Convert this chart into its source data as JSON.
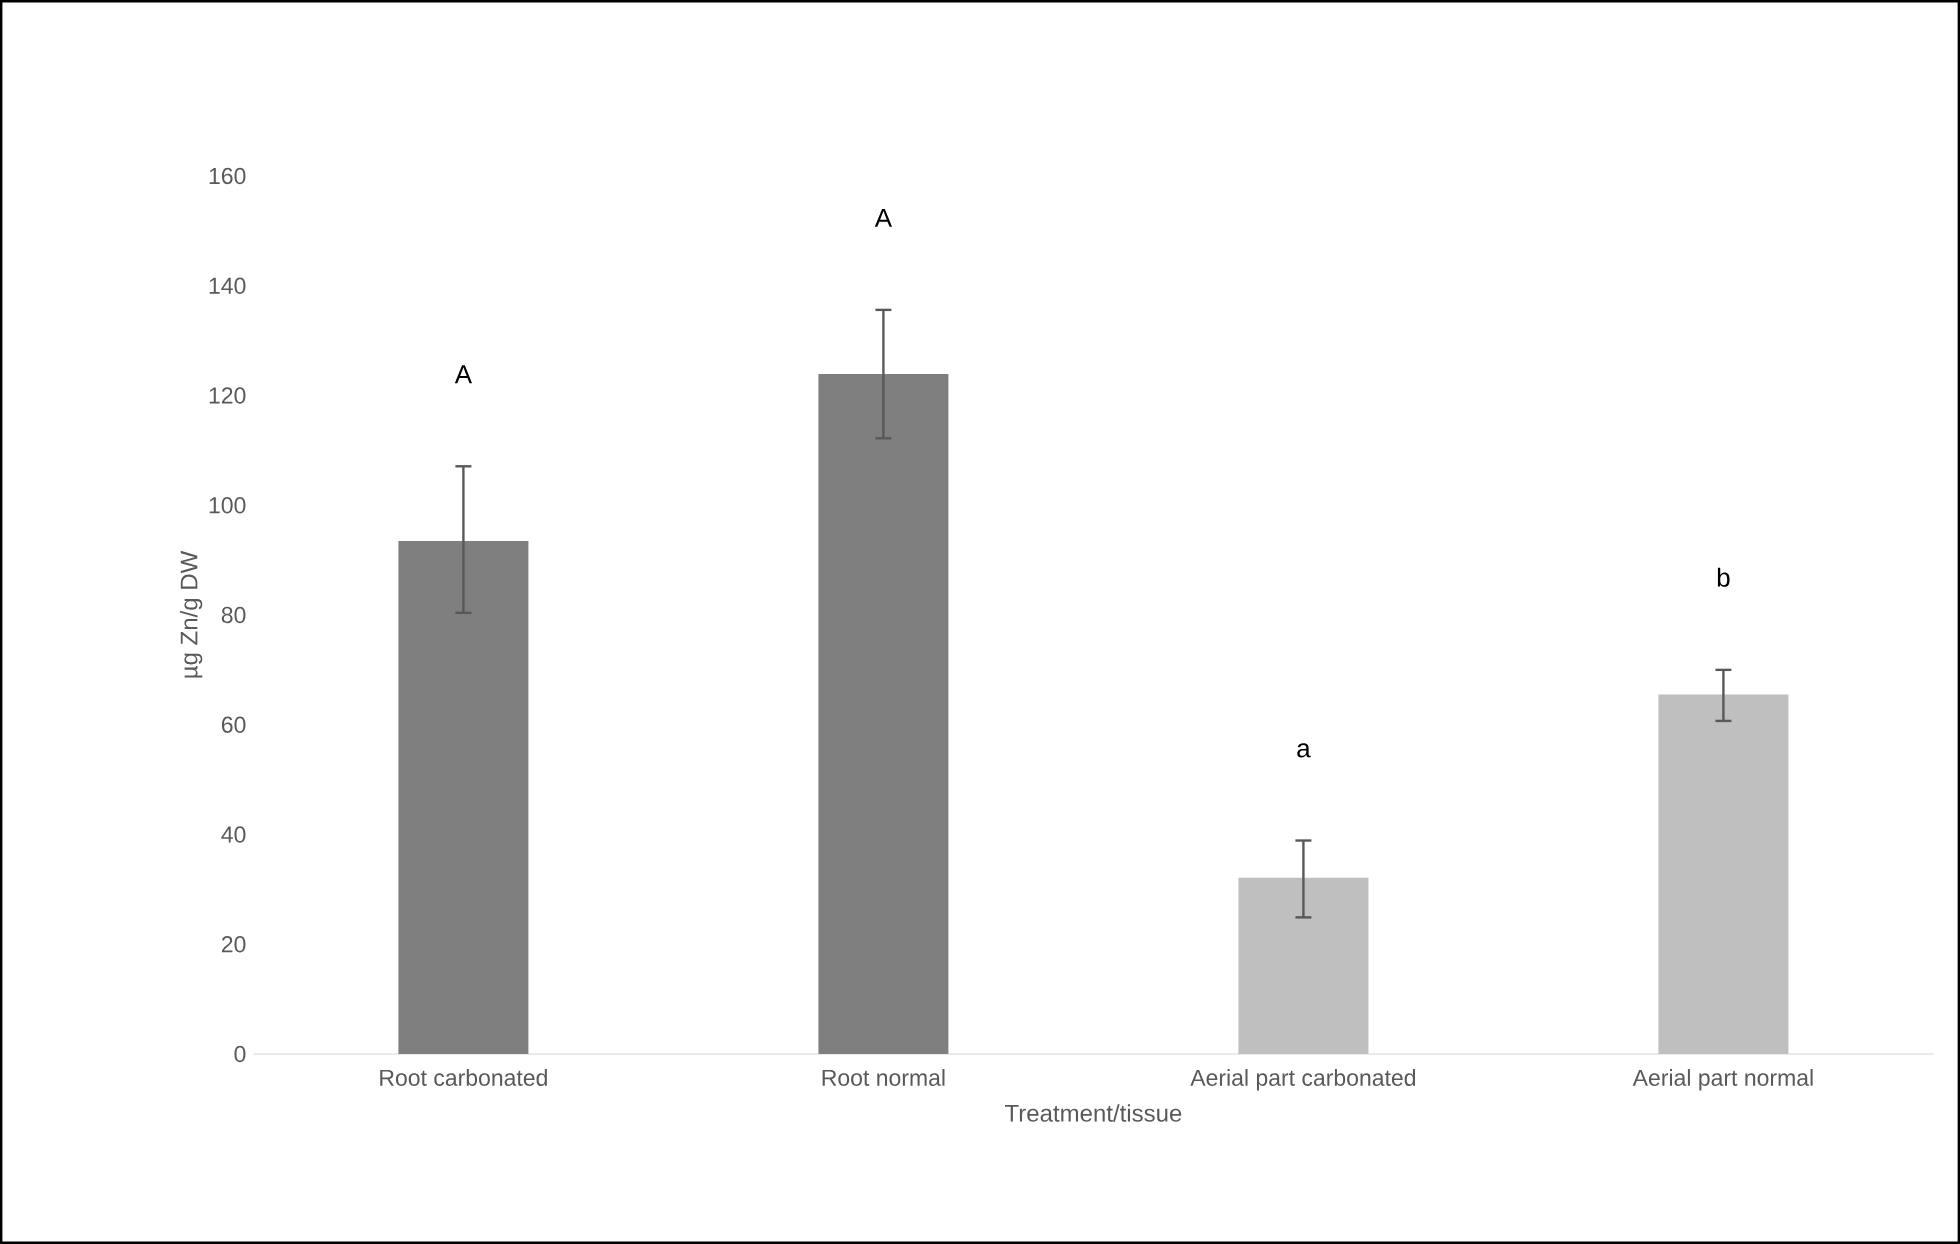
{
  "chart_data": {
    "type": "bar",
    "xlabel": "Treatment/tissue",
    "ylabel": "µg Zn/g  DW",
    "categories": [
      "Root carbonated",
      "Root normal",
      "Aerial part carbonated",
      "Aerial part normal"
    ],
    "values": [
      93.5,
      123.9,
      32.1,
      65.5
    ],
    "colors": [
      "#7f7f7f",
      "#7f7f7f",
      "#bfbfbf",
      "#bfbfbf"
    ],
    "errors": [
      [
        80.4,
        107.1
      ],
      [
        112.2,
        135.6
      ],
      [
        24.9,
        38.9
      ],
      [
        60.7,
        70.0
      ]
    ],
    "ylim": [
      0,
      160
    ],
    "yticks": [
      0,
      20,
      40,
      60,
      80,
      100,
      120,
      140,
      160
    ],
    "grid": false,
    "annotations": [
      "A",
      "A",
      "a",
      "b"
    ]
  }
}
